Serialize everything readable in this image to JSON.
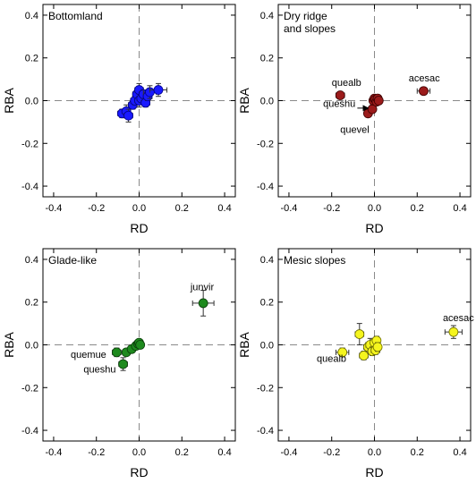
{
  "chart_data": [
    {
      "type": "scatter",
      "title": "Bottomland",
      "xlabel": "RD",
      "ylabel": "RBA",
      "xlim": [
        -0.45,
        0.45
      ],
      "ylim": [
        -0.45,
        0.45
      ],
      "xticks": [
        "-0.4",
        "-0.2",
        "0.0",
        "0.2",
        "0.4"
      ],
      "yticks": [
        "0.4",
        "0.2",
        "0.0",
        "-0.2",
        "-0.4"
      ],
      "color": "#1a1aff",
      "points": [
        {
          "x": -0.08,
          "y": -0.06,
          "xerr": 0.02,
          "yerr": 0.02
        },
        {
          "x": -0.06,
          "y": -0.05,
          "xerr": 0.02,
          "yerr": 0.03
        },
        {
          "x": -0.05,
          "y": -0.07,
          "xerr": 0.02,
          "yerr": 0.03
        },
        {
          "x": -0.03,
          "y": -0.02,
          "xerr": 0.02,
          "yerr": 0.02
        },
        {
          "x": -0.02,
          "y": 0.0,
          "xerr": 0.02,
          "yerr": 0.02
        },
        {
          "x": -0.01,
          "y": 0.03,
          "xerr": 0.02,
          "yerr": 0.02
        },
        {
          "x": 0.0,
          "y": 0.0,
          "xerr": 0.02,
          "yerr": 0.03
        },
        {
          "x": 0.0,
          "y": 0.05,
          "xerr": 0.02,
          "yerr": 0.03
        },
        {
          "x": 0.01,
          "y": 0.01,
          "xerr": 0.02,
          "yerr": 0.02
        },
        {
          "x": 0.02,
          "y": 0.03,
          "xerr": 0.02,
          "yerr": 0.02
        },
        {
          "x": 0.03,
          "y": -0.01,
          "xerr": 0.02,
          "yerr": 0.02
        },
        {
          "x": 0.04,
          "y": 0.02,
          "xerr": 0.02,
          "yerr": 0.02
        },
        {
          "x": 0.05,
          "y": 0.04,
          "xerr": 0.03,
          "yerr": 0.03
        },
        {
          "x": 0.09,
          "y": 0.05,
          "xerr": 0.04,
          "yerr": 0.03
        }
      ],
      "annotations": []
    },
    {
      "type": "scatter",
      "title": "Dry ridge\nand slopes",
      "xlabel": "RD",
      "ylabel": "RBA",
      "xlim": [
        -0.45,
        0.45
      ],
      "ylim": [
        -0.45,
        0.45
      ],
      "xticks": [
        "-0.4",
        "-0.2",
        "0.0",
        "0.2",
        "0.4"
      ],
      "yticks": [
        "0.4",
        "0.2",
        "0.0",
        "-0.2",
        "-0.4"
      ],
      "color": "#9b1b1b",
      "points": [
        {
          "x": -0.16,
          "y": 0.025,
          "xerr": 0.02,
          "yerr": 0.015
        },
        {
          "x": 0.23,
          "y": 0.045,
          "xerr": 0.03,
          "yerr": 0.01
        },
        {
          "x": -0.03,
          "y": -0.06,
          "xerr": 0.01,
          "yerr": 0.01
        },
        {
          "x": -0.01,
          "y": -0.04,
          "xerr": 0.01,
          "yerr": 0.01
        },
        {
          "x": -0.005,
          "y": 0.0,
          "xerr": 0.01,
          "yerr": 0.01
        },
        {
          "x": 0.0,
          "y": 0.01,
          "xerr": 0.01,
          "yerr": 0.01
        },
        {
          "x": 0.005,
          "y": 0.005,
          "xerr": 0.01,
          "yerr": 0.01
        },
        {
          "x": 0.01,
          "y": -0.005,
          "xerr": 0.01,
          "yerr": 0.01
        },
        {
          "x": 0.015,
          "y": 0.01,
          "xerr": 0.01,
          "yerr": 0.01
        },
        {
          "x": 0.02,
          "y": 0.0,
          "xerr": 0.01,
          "yerr": 0.01
        }
      ],
      "annotations": [
        {
          "text": "quealb",
          "x": -0.2,
          "y": 0.07
        },
        {
          "text": "acesac",
          "x": 0.16,
          "y": 0.09
        },
        {
          "text": "queshu",
          "x": -0.24,
          "y": -0.03
        },
        {
          "text": "quevel",
          "x": -0.16,
          "y": -0.15
        }
      ]
    },
    {
      "type": "scatter",
      "title": "Glade-like",
      "xlabel": "RD",
      "ylabel": "RBA",
      "xlim": [
        -0.45,
        0.45
      ],
      "ylim": [
        -0.45,
        0.45
      ],
      "xticks": [
        "-0.4",
        "-0.2",
        "0.0",
        "0.2",
        "0.4"
      ],
      "yticks": [
        "0.4",
        "0.2",
        "0.0",
        "-0.2",
        "-0.4"
      ],
      "color": "#1e8a1e",
      "points": [
        {
          "x": 0.3,
          "y": 0.195,
          "xerr": 0.05,
          "yerr": 0.06
        },
        {
          "x": -0.105,
          "y": -0.035,
          "xerr": 0.02,
          "yerr": 0.02
        },
        {
          "x": -0.075,
          "y": -0.09,
          "xerr": 0.02,
          "yerr": 0.03
        },
        {
          "x": -0.06,
          "y": -0.035,
          "xerr": 0.01,
          "yerr": 0.01
        },
        {
          "x": -0.035,
          "y": -0.02,
          "xerr": 0.01,
          "yerr": 0.01
        },
        {
          "x": -0.015,
          "y": -0.005,
          "xerr": 0.01,
          "yerr": 0.01
        },
        {
          "x": -0.005,
          "y": 0.005,
          "xerr": 0.01,
          "yerr": 0.01
        },
        {
          "x": 0.0,
          "y": 0.01,
          "xerr": 0.01,
          "yerr": 0.01
        },
        {
          "x": 0.005,
          "y": 0.0,
          "xerr": 0.01,
          "yerr": 0.01
        }
      ],
      "annotations": [
        {
          "text": "junvir",
          "x": 0.24,
          "y": 0.255
        },
        {
          "text": "quemue",
          "x": -0.32,
          "y": -0.06
        },
        {
          "text": "queshu",
          "x": -0.26,
          "y": -0.13
        }
      ]
    },
    {
      "type": "scatter",
      "title": "Mesic slopes",
      "xlabel": "RD",
      "ylabel": "RBA",
      "xlim": [
        -0.45,
        0.45
      ],
      "ylim": [
        -0.45,
        0.45
      ],
      "xticks": [
        "-0.4",
        "-0.2",
        "0.0",
        "0.2",
        "0.4"
      ],
      "yticks": [
        "0.4",
        "0.2",
        "0.0",
        "-0.2",
        "-0.4"
      ],
      "color": "#f5f51e",
      "points": [
        {
          "x": 0.37,
          "y": 0.06,
          "xerr": 0.04,
          "yerr": 0.03
        },
        {
          "x": -0.15,
          "y": -0.035,
          "xerr": 0.03,
          "yerr": 0.02
        },
        {
          "x": -0.07,
          "y": 0.05,
          "xerr": 0.02,
          "yerr": 0.05
        },
        {
          "x": -0.05,
          "y": -0.05,
          "xerr": 0.02,
          "yerr": 0.02
        },
        {
          "x": -0.03,
          "y": -0.01,
          "xerr": 0.02,
          "yerr": 0.02
        },
        {
          "x": -0.02,
          "y": 0.0,
          "xerr": 0.02,
          "yerr": 0.03
        },
        {
          "x": -0.01,
          "y": -0.03,
          "xerr": 0.02,
          "yerr": 0.02
        },
        {
          "x": 0.0,
          "y": 0.01,
          "xerr": 0.01,
          "yerr": 0.02
        },
        {
          "x": 0.005,
          "y": -0.025,
          "xerr": 0.02,
          "yerr": 0.02
        },
        {
          "x": 0.01,
          "y": 0.02,
          "xerr": 0.01,
          "yerr": 0.02
        },
        {
          "x": 0.015,
          "y": -0.01,
          "xerr": 0.01,
          "yerr": 0.02
        }
      ],
      "annotations": [
        {
          "text": "acesac",
          "x": 0.32,
          "y": 0.11
        },
        {
          "text": "quealb",
          "x": -0.27,
          "y": -0.08
        }
      ]
    }
  ]
}
